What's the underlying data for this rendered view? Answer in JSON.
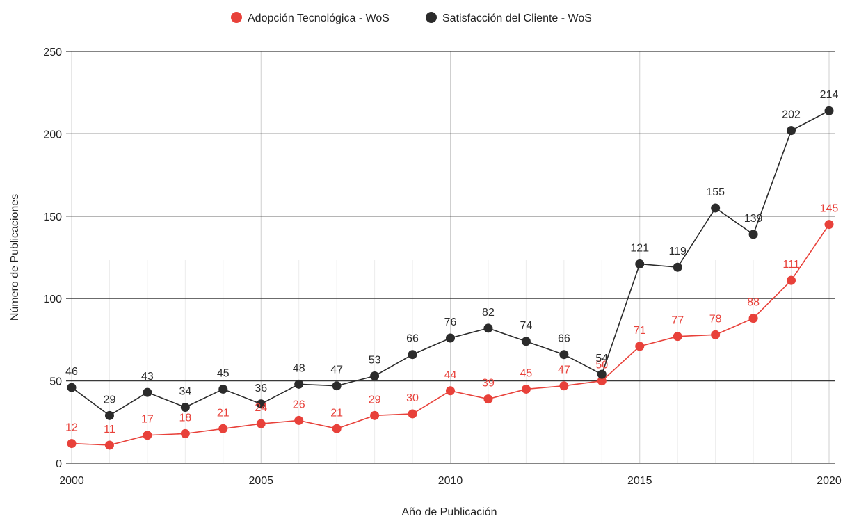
{
  "chart_data": {
    "type": "line",
    "xlabel": "Año de Publicación",
    "ylabel": "Número de Publicaciones",
    "xlim": [
      2000,
      2020
    ],
    "ylim": [
      0,
      250
    ],
    "x_ticks": [
      2000,
      2005,
      2010,
      2015,
      2020
    ],
    "y_ticks": [
      0,
      50,
      100,
      150,
      200,
      250
    ],
    "legend_position": "top-center",
    "grid": true,
    "x": [
      2000,
      2001,
      2002,
      2003,
      2004,
      2005,
      2006,
      2007,
      2008,
      2009,
      2010,
      2011,
      2012,
      2013,
      2014,
      2015,
      2016,
      2017,
      2018,
      2019,
      2020
    ],
    "series": [
      {
        "name": "Adopción Tecnológica  - WoS",
        "color": "#e8413a",
        "values": [
          12,
          11,
          17,
          18,
          21,
          24,
          26,
          21,
          29,
          30,
          44,
          39,
          45,
          47,
          50,
          71,
          77,
          78,
          88,
          111,
          145
        ]
      },
      {
        "name": "Satisfacción del Cliente - WoS",
        "color": "#2b2b2b",
        "values": [
          46,
          29,
          43,
          34,
          45,
          36,
          48,
          47,
          53,
          66,
          76,
          82,
          74,
          66,
          54,
          121,
          119,
          155,
          139,
          202,
          214
        ]
      }
    ]
  }
}
